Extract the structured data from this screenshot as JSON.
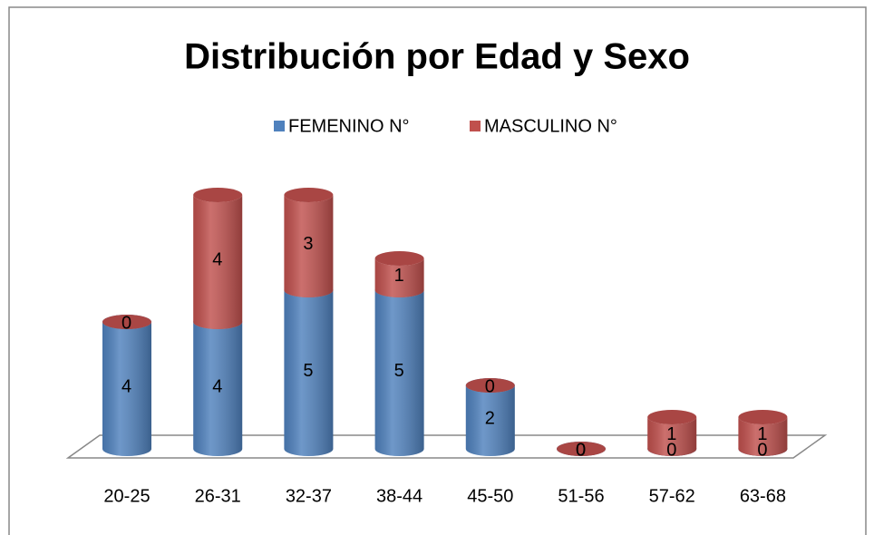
{
  "chart_data": {
    "type": "bar",
    "stacked": true,
    "title": "Distribución por Edad y Sexo",
    "categories": [
      "20-25",
      "26-31",
      "32-37",
      "38-44",
      "45-50",
      "51-56",
      "57-62",
      "63-68"
    ],
    "series": [
      {
        "name": "FEMENINO N°",
        "color": "#4f81bd",
        "values": [
          4,
          4,
          5,
          5,
          2,
          0,
          0,
          0
        ]
      },
      {
        "name": "MASCULINO N°",
        "color": "#c0504d",
        "values": [
          0,
          4,
          3,
          1,
          0,
          0,
          1,
          1
        ]
      }
    ],
    "legend": "top"
  }
}
